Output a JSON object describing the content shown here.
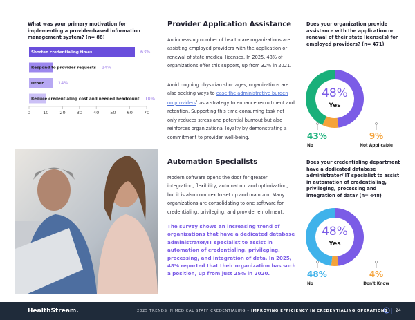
{
  "left_chart": {
    "type": "bar",
    "title": "What was your primary motivation for implementing a provider-based information management system? (n= 88)",
    "categories": [
      "Shorten credentialing times",
      "Respond to provider requests",
      "Other",
      "Reduce credentialing cost and needed headcount"
    ],
    "values": [
      63,
      14,
      14,
      10
    ],
    "value_labels": [
      "63%",
      "14%",
      "14%",
      "10%"
    ],
    "colors": [
      "#6a4fdc",
      "#9c87ee",
      "#b7a8f3",
      "#cbc0f6"
    ],
    "xlim": [
      0,
      70
    ],
    "xticks": [
      0,
      10,
      20,
      30,
      40,
      50,
      60,
      70
    ]
  },
  "provider_section": {
    "title": "Provider Application Assistance",
    "paragraph_1": "An increasing number of healthcare organizations are assisting employed providers with the application or renewal of state medical licenses. In 2025, 48% of organizations offer this support, up from 32% in 2021.",
    "paragraph_2": {
      "before": "Amid ongoing physician shortages, organizations are also seeking ways to ",
      "link": "ease the administrative burden on providers",
      "sup": "1",
      "after": " as a strategy to enhance recruitment and retention. Supporting this time-consuming task not only reduces stress and potential burnout but also reinforces organizational loyalty by demonstrating a commitment to provider well-being."
    }
  },
  "automation_section": {
    "title": "Automation Specialists",
    "paragraph": "Modern software opens the door for greater integration, flexibility, automation, and optimization, but it is also complex to set up and maintain. Many organizations are consolidating to one software for credentialing, privileging, and provider enrollment.",
    "highlight": "The survey shows an increasing trend of organizations that have a dedicated database administrator/IT specialist to assist in automation of credentialing, privileging, processing, and integration of data. In 2025, 48% reported that their organization has such a position, up from just 25% in 2020."
  },
  "donut_1": {
    "type": "pie",
    "title": "Does your organization provide assistance with the application or renewal of their state license(s) for employed providers? (n= 471)",
    "categories": [
      "Yes",
      "Not Applicable",
      "No"
    ],
    "values": [
      48,
      9,
      43
    ],
    "value_labels": [
      "48%",
      "9%",
      "43%"
    ],
    "colors": [
      "#7b5ce6",
      "#f5a33a",
      "#19b07a"
    ]
  },
  "donut_2": {
    "type": "pie",
    "title": "Does your credentialing department have a dedicated database administrator/ IT specialist to assist in automation of credentialing, privileging, processing and integration of data? (n= 448)",
    "categories": [
      "Yes",
      "Don't Know",
      "No"
    ],
    "values": [
      48,
      4,
      48
    ],
    "value_labels": [
      "48%",
      "4%",
      "48%"
    ],
    "colors": [
      "#7b5ce6",
      "#f5a33a",
      "#3fb2ea"
    ]
  },
  "footer": {
    "logo": "HealthStream.",
    "text": "2025 TRENDS IN MEDICAL STAFF CREDENTIALING – ",
    "bold_text": "IMPROVING EFFICIENCY IN CREDENTIALING OPERATIONS",
    "page": "24"
  }
}
